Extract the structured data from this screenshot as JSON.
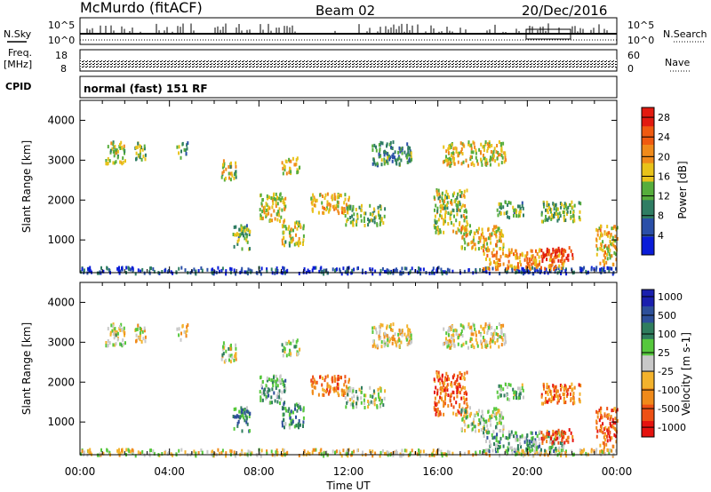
{
  "header": {
    "station": "McMurdo (fitACF)",
    "beam": "Beam 02",
    "date": "20/Dec/2016"
  },
  "top_panels": {
    "nsky_label": "N.Sky",
    "nsearch_label": "N.Search",
    "nsky_ticks": [
      "10^5",
      "10^0"
    ],
    "nsearch_ticks": [
      "10^5",
      "10^0"
    ],
    "freq_label_1": "Freq.",
    "freq_label_2": "[MHz]",
    "freq_ticks": [
      "18",
      "8"
    ],
    "nave_label": "Nave",
    "nave_ticks": [
      "60",
      "0"
    ],
    "cpid_label": "CPID",
    "cpid_value": "normal (fast) 151 RF"
  },
  "colors": {
    "power_scale": [
      "#0a1cd8",
      "#2a4fa8",
      "#2f7d63",
      "#56ad3c",
      "#e8c21a",
      "#f08a1a",
      "#f05a10",
      "#e21a10"
    ],
    "velocity_scale": [
      "#e5130f",
      "#ee5014",
      "#f08a1a",
      "#f3b22c",
      "#c8c8c8",
      "#56c83c",
      "#2f7d5e",
      "#2d4f9a",
      "#1a1fae"
    ]
  },
  "chart_data": [
    {
      "type": "heatmap",
      "name": "Power",
      "xlabel": "",
      "ylabel": "Slant Range [km]",
      "x_range": [
        "00:00",
        "24:00"
      ],
      "ylim": [
        180,
        4500
      ],
      "yticks": [
        "1000",
        "2000",
        "3000",
        "4000"
      ],
      "colorbar": {
        "label": "Power [dB]",
        "ticks": [
          "4",
          "8",
          "12",
          "16",
          "20",
          "24",
          "28"
        ],
        "range": [
          0,
          30
        ]
      },
      "regions": [
        {
          "t0": 0.0,
          "t1": 24.0,
          "r0": 190,
          "r1": 350,
          "level": 0.15
        },
        {
          "t0": 1.1,
          "t1": 2.1,
          "r0": 2950,
          "r1": 3500,
          "level": 0.5
        },
        {
          "t0": 2.4,
          "t1": 2.9,
          "r0": 3050,
          "r1": 3500,
          "level": 0.45
        },
        {
          "t0": 4.3,
          "t1": 4.8,
          "r0": 3100,
          "r1": 3500,
          "level": 0.35
        },
        {
          "t0": 6.3,
          "t1": 7.0,
          "r0": 2550,
          "r1": 3050,
          "level": 0.5
        },
        {
          "t0": 9.0,
          "t1": 9.8,
          "r0": 2700,
          "r1": 3100,
          "level": 0.55
        },
        {
          "t0": 6.8,
          "t1": 7.6,
          "r0": 800,
          "r1": 1400,
          "level": 0.4
        },
        {
          "t0": 8.0,
          "t1": 9.2,
          "r0": 1500,
          "r1": 2200,
          "level": 0.55
        },
        {
          "t0": 9.0,
          "t1": 10.0,
          "r0": 900,
          "r1": 1500,
          "level": 0.5
        },
        {
          "t0": 10.3,
          "t1": 12.0,
          "r0": 1700,
          "r1": 2200,
          "level": 0.6
        },
        {
          "t0": 11.8,
          "t1": 13.6,
          "r0": 1400,
          "r1": 1900,
          "level": 0.45
        },
        {
          "t0": 13.0,
          "t1": 14.8,
          "r0": 2900,
          "r1": 3500,
          "level": 0.35
        },
        {
          "t0": 16.2,
          "t1": 19.0,
          "r0": 2900,
          "r1": 3500,
          "level": 0.55
        },
        {
          "t0": 15.8,
          "t1": 17.3,
          "r0": 1200,
          "r1": 2300,
          "level": 0.5
        },
        {
          "t0": 17.0,
          "t1": 18.9,
          "r0": 800,
          "r1": 1400,
          "level": 0.6
        },
        {
          "t0": 18.6,
          "t1": 19.8,
          "r0": 1600,
          "r1": 2000,
          "level": 0.4
        },
        {
          "t0": 20.6,
          "t1": 22.4,
          "r0": 1500,
          "r1": 2000,
          "level": 0.45
        },
        {
          "t0": 18.0,
          "t1": 21.6,
          "r0": 300,
          "r1": 800,
          "level": 0.7
        },
        {
          "t0": 20.6,
          "t1": 22.0,
          "r0": 500,
          "r1": 850,
          "level": 0.95
        },
        {
          "t0": 23.0,
          "t1": 24.0,
          "r0": 400,
          "r1": 1400,
          "level": 0.6
        }
      ]
    },
    {
      "type": "heatmap",
      "name": "Velocity",
      "xlabel": "Time UT",
      "ylabel": "Slant Range [km]",
      "x_range": [
        "00:00",
        "24:00"
      ],
      "xticks": [
        "00:00",
        "04:00",
        "08:00",
        "12:00",
        "16:00",
        "20:00",
        "00:00"
      ],
      "ylim": [
        180,
        4500
      ],
      "yticks": [
        "1000",
        "2000",
        "3000",
        "4000"
      ],
      "colorbar": {
        "label": "Velocity [m s-1]",
        "ticks": [
          "1000",
          "500",
          "100",
          "25",
          "-25",
          "-100",
          "-500",
          "-1000"
        ]
      },
      "regions": [
        {
          "t0": 0.0,
          "t1": 24.0,
          "r0": 190,
          "r1": 350,
          "level": 0.45
        },
        {
          "t0": 1.1,
          "t1": 2.1,
          "r0": 2950,
          "r1": 3500,
          "level": 0.5
        },
        {
          "t0": 2.4,
          "t1": 2.9,
          "r0": 3050,
          "r1": 3500,
          "level": 0.45
        },
        {
          "t0": 4.3,
          "t1": 4.8,
          "r0": 3100,
          "r1": 3500,
          "level": 0.4
        },
        {
          "t0": 6.3,
          "t1": 7.0,
          "r0": 2550,
          "r1": 3050,
          "level": 0.5
        },
        {
          "t0": 9.0,
          "t1": 9.8,
          "r0": 2700,
          "r1": 3100,
          "level": 0.55
        },
        {
          "t0": 6.8,
          "t1": 7.6,
          "r0": 800,
          "r1": 1400,
          "level": 0.7
        },
        {
          "t0": 8.0,
          "t1": 9.2,
          "r0": 1500,
          "r1": 2200,
          "level": 0.65
        },
        {
          "t0": 9.0,
          "t1": 10.0,
          "r0": 900,
          "r1": 1500,
          "level": 0.7
        },
        {
          "t0": 10.3,
          "t1": 12.0,
          "r0": 1700,
          "r1": 2200,
          "level": 0.25
        },
        {
          "t0": 11.8,
          "t1": 13.6,
          "r0": 1400,
          "r1": 1900,
          "level": 0.55
        },
        {
          "t0": 13.0,
          "t1": 14.8,
          "r0": 2900,
          "r1": 3500,
          "level": 0.45
        },
        {
          "t0": 16.2,
          "t1": 19.0,
          "r0": 2900,
          "r1": 3500,
          "level": 0.45
        },
        {
          "t0": 15.8,
          "t1": 17.3,
          "r0": 1200,
          "r1": 2300,
          "level": 0.2
        },
        {
          "t0": 17.0,
          "t1": 18.9,
          "r0": 800,
          "r1": 1400,
          "level": 0.55
        },
        {
          "t0": 18.6,
          "t1": 19.8,
          "r0": 1600,
          "r1": 2000,
          "level": 0.6
        },
        {
          "t0": 20.6,
          "t1": 22.4,
          "r0": 1500,
          "r1": 2000,
          "level": 0.25
        },
        {
          "t0": 18.0,
          "t1": 21.6,
          "r0": 300,
          "r1": 800,
          "level": 0.65
        },
        {
          "t0": 20.6,
          "t1": 22.0,
          "r0": 500,
          "r1": 850,
          "level": 0.2
        },
        {
          "t0": 23.0,
          "t1": 24.0,
          "r0": 400,
          "r1": 1400,
          "level": 0.2
        }
      ]
    }
  ]
}
